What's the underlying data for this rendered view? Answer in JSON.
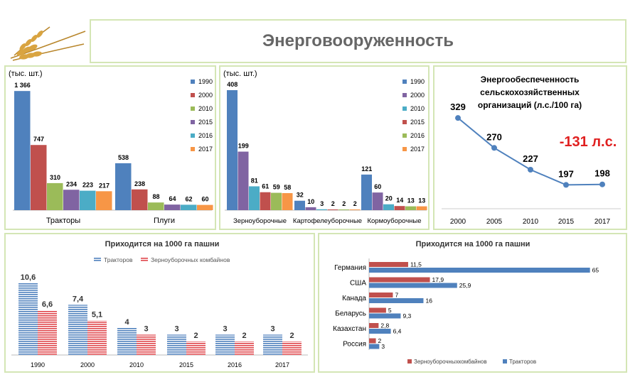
{
  "page": {
    "title": "Энерговооруженность"
  },
  "chart_data": [
    {
      "id": "machines-1",
      "type": "bar",
      "unit_label": "(тыс. шт.)",
      "categories": [
        "Тракторы",
        "Плуги"
      ],
      "series": [
        {
          "name": "1990",
          "color": "#4f81bd",
          "values": [
            1366,
            538
          ]
        },
        {
          "name": "2000",
          "color": "#c0504d",
          "values": [
            747,
            238
          ]
        },
        {
          "name": "2010",
          "color": "#9bbb59",
          "values": [
            310,
            88
          ]
        },
        {
          "name": "2015",
          "color": "#8064a2",
          "values": [
            234,
            64
          ]
        },
        {
          "name": "2016",
          "color": "#4bacc6",
          "values": [
            223,
            62
          ]
        },
        {
          "name": "2017",
          "color": "#f79646",
          "values": [
            217,
            60
          ]
        }
      ],
      "data_labels": [
        [
          "1 366",
          "538"
        ],
        [
          "747",
          "238"
        ],
        [
          "310",
          "88"
        ],
        [
          "234",
          "64"
        ],
        [
          "223",
          "62"
        ],
        [
          "217",
          "60"
        ]
      ],
      "ylim": [
        0,
        1400
      ]
    },
    {
      "id": "machines-2",
      "type": "bar",
      "unit_label": "(тыс. шт.)",
      "categories": [
        "Зерноуборочные",
        "Картофелеуборочные",
        "Кормоуборочные"
      ],
      "series": [
        {
          "name": "1990",
          "color": "#4f81bd",
          "values": [
            408,
            32,
            121
          ]
        },
        {
          "name": "2000",
          "color": "#8064a2",
          "values": [
            199,
            10,
            60
          ]
        },
        {
          "name": "2010",
          "color": "#4bacc6",
          "values": [
            81,
            3,
            20
          ]
        },
        {
          "name": "2015",
          "color": "#c0504d",
          "values": [
            61,
            2,
            14
          ]
        },
        {
          "name": "2016",
          "color": "#9bbb59",
          "values": [
            59,
            2,
            13
          ]
        },
        {
          "name": "2017",
          "color": "#f79646",
          "values": [
            58,
            2,
            13
          ]
        }
      ],
      "ylim": [
        0,
        420
      ]
    },
    {
      "id": "energy-line",
      "type": "line",
      "title": "Энергообеспеченность сельскохозяйственных организаций (л.с./100 га)",
      "title_lines": [
        "Энергообеспеченность",
        "сельскохозяйственных",
        "организаций (л.с./100 га)"
      ],
      "x": [
        "2000",
        "2005",
        "2010",
        "2015",
        "2017"
      ],
      "values": [
        329,
        270,
        227,
        197,
        198
      ],
      "annotation": "-131 л.с.",
      "color": "#4f81bd",
      "ylim": [
        150,
        360
      ]
    },
    {
      "id": "per-1000-bars",
      "type": "bar",
      "title": "Приходится на 1000 га пашни",
      "categories": [
        "1990",
        "2000",
        "2010",
        "2015",
        "2016",
        "2017"
      ],
      "series": [
        {
          "name": "Тракторов",
          "color": "#4f81bd",
          "values": [
            10.6,
            7.4,
            4,
            3,
            3,
            3
          ]
        },
        {
          "name": "Зерноуборочных комбайнов",
          "color": "#e0474c",
          "values": [
            6.6,
            5.1,
            3,
            2,
            2,
            2
          ]
        }
      ],
      "data_labels": [
        [
          "10,6",
          "7,4",
          "4",
          "3",
          "3",
          "3"
        ],
        [
          "6,6",
          "5,1",
          "3",
          "2",
          "2",
          "2"
        ]
      ],
      "ylim": [
        0,
        11
      ]
    },
    {
      "id": "countries",
      "type": "bar",
      "orientation": "horizontal",
      "title": "Приходится на 1000 га пашни",
      "categories": [
        "Германия",
        "США",
        "Канада",
        "Беларусь",
        "Казахстан",
        "Россия"
      ],
      "series": [
        {
          "name": "Зерноуборочныхкомбайнов",
          "color": "#c0504d",
          "values": [
            11.5,
            17.9,
            7,
            5,
            2.8,
            2
          ]
        },
        {
          "name": "Тракторов",
          "color": "#4f81bd",
          "values": [
            65,
            25.9,
            16,
            9.3,
            6.4,
            3
          ]
        }
      ],
      "data_labels": [
        [
          "11,5",
          "17,9",
          "7",
          "5",
          "2,8",
          "2"
        ],
        [
          "65",
          "25,9",
          "16",
          "9,3",
          "6,4",
          "3"
        ]
      ],
      "xlim": [
        0,
        68
      ]
    }
  ]
}
